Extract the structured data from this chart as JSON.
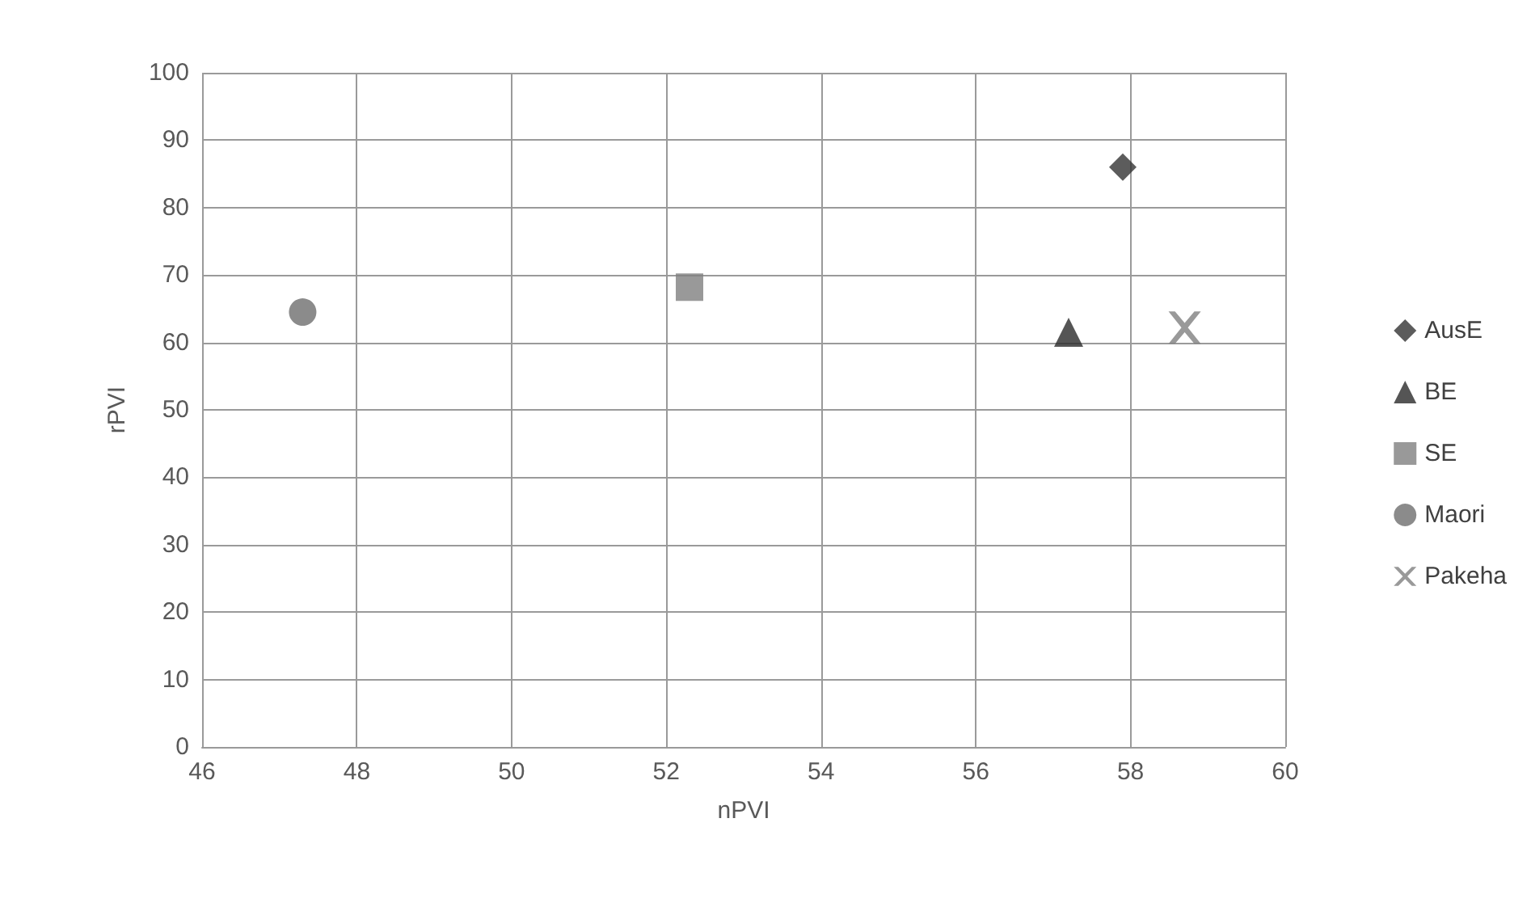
{
  "chart_data": {
    "type": "scatter",
    "xlabel": "nPVI",
    "ylabel": "rPVI",
    "xlim": [
      46,
      60
    ],
    "xticks": [
      46,
      48,
      50,
      52,
      54,
      56,
      58,
      60
    ],
    "ylim": [
      0,
      100
    ],
    "yticks": [
      0,
      10,
      20,
      30,
      40,
      50,
      60,
      70,
      80,
      90,
      100
    ],
    "grid": true,
    "legend": "right",
    "series": [
      {
        "name": "AusE",
        "color": "#333333",
        "marker": "diamond",
        "x": [
          57.9
        ],
        "values": [
          86
        ]
      },
      {
        "name": "BE",
        "color": "#2b2b2b",
        "marker": "triangle",
        "x": [
          57.2
        ],
        "values": [
          61.5
        ]
      },
      {
        "name": "SE",
        "color": "#808080",
        "marker": "square",
        "x": [
          52.3
        ],
        "values": [
          68.2
        ]
      },
      {
        "name": "Maori",
        "color": "#6e6e6e",
        "marker": "circle",
        "x": [
          47.3
        ],
        "values": [
          64.5
        ]
      },
      {
        "name": "Pakeha",
        "color": "#7f7f7f",
        "marker": "cross",
        "x": [
          58.7
        ],
        "values": [
          62.2
        ]
      }
    ]
  }
}
